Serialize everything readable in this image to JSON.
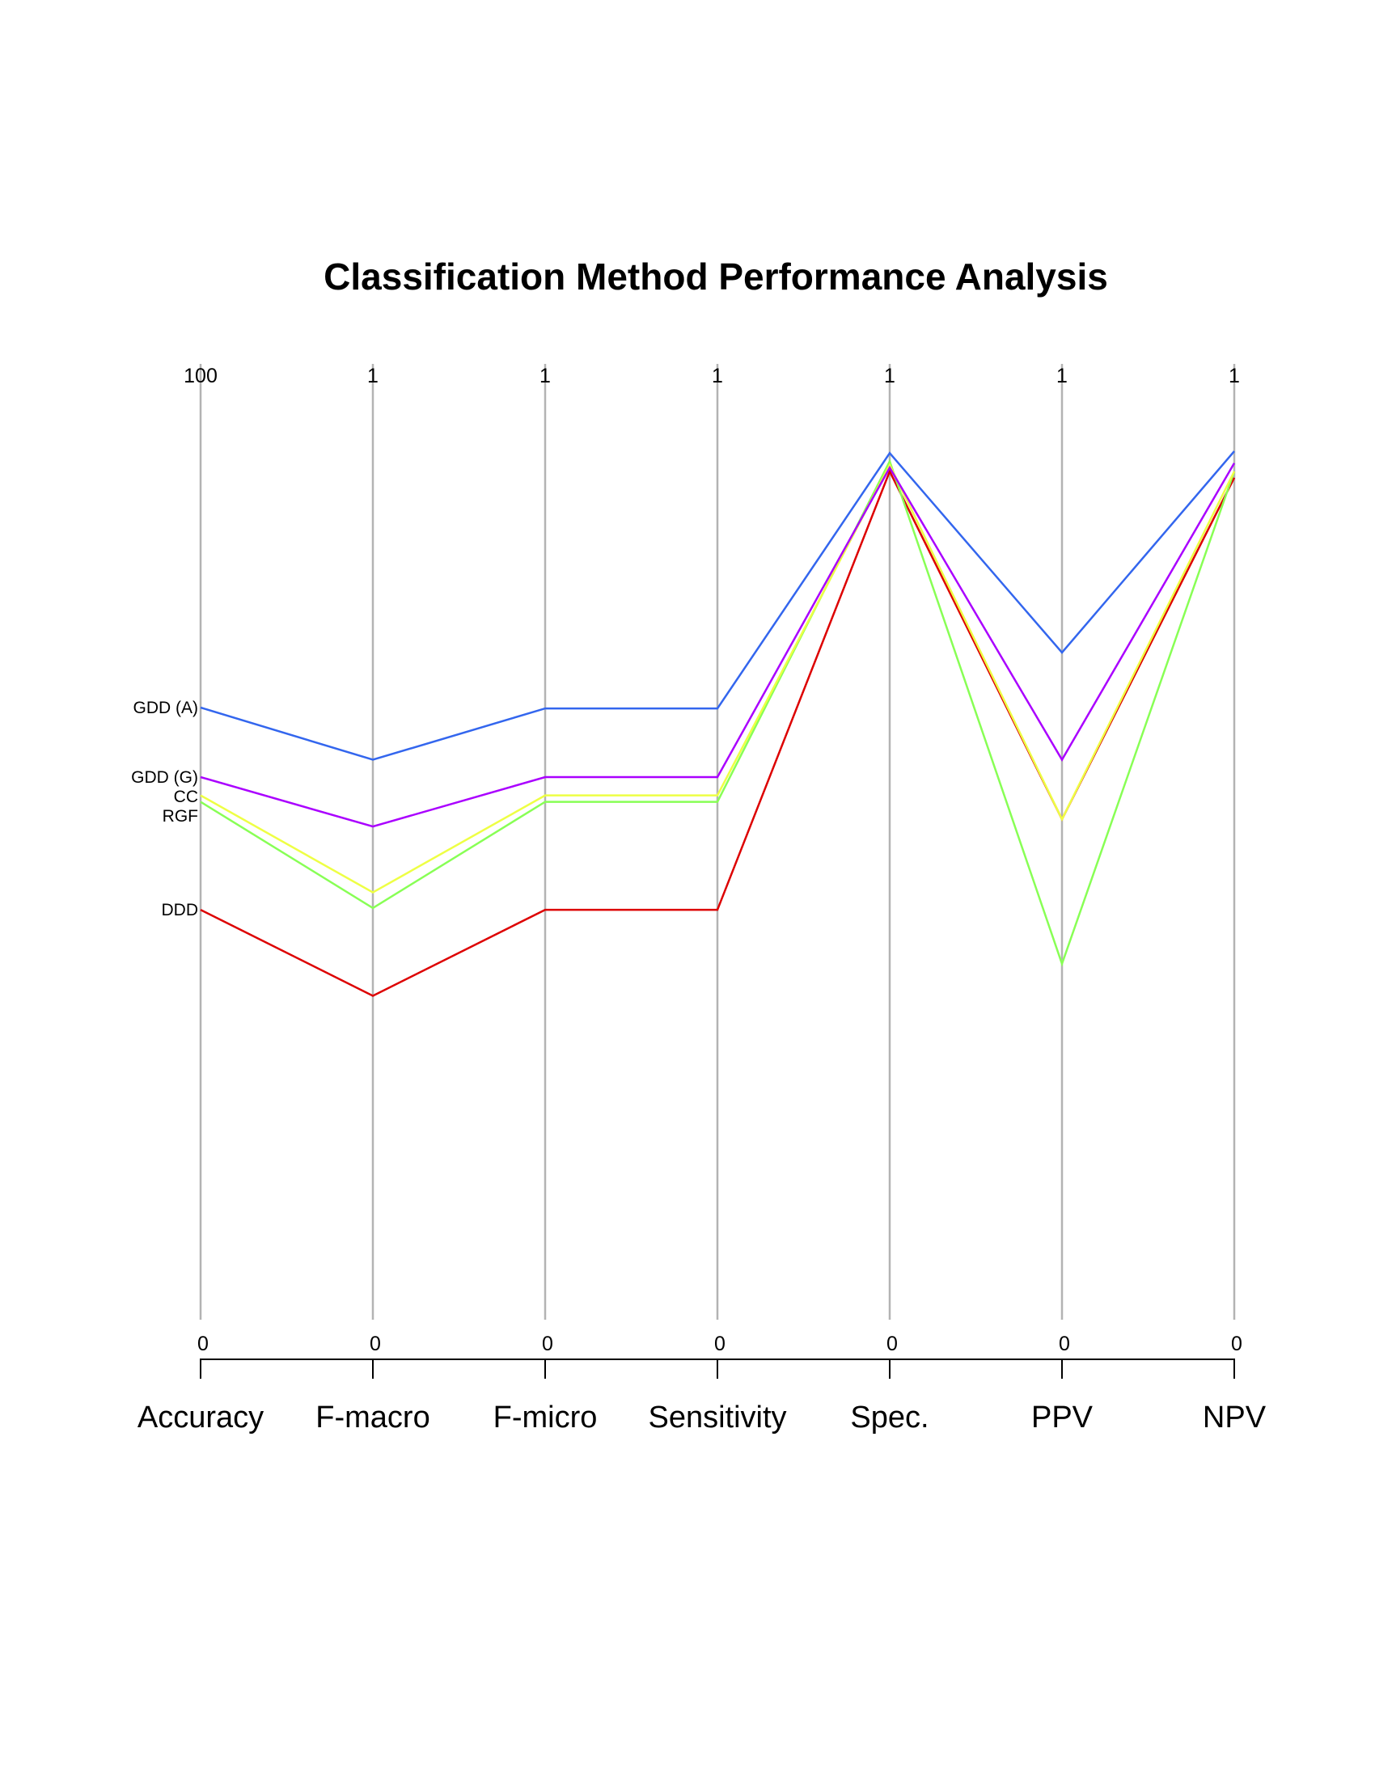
{
  "chart_data": {
    "type": "parallel-coordinates",
    "title": "Classification Method Performance Analysis",
    "axes": [
      {
        "name": "Accuracy",
        "min": 0,
        "max": 100,
        "min_label": "0",
        "max_label": "100"
      },
      {
        "name": "F-macro",
        "min": 0,
        "max": 1,
        "min_label": "0",
        "max_label": "1"
      },
      {
        "name": "F-micro",
        "min": 0,
        "max": 1,
        "min_label": "0",
        "max_label": "1"
      },
      {
        "name": "Sensitivity",
        "min": 0,
        "max": 1,
        "min_label": "0",
        "max_label": "1"
      },
      {
        "name": "Spec.",
        "min": 0,
        "max": 1,
        "min_label": "0",
        "max_label": "1"
      },
      {
        "name": "PPV",
        "min": 0,
        "max": 1,
        "min_label": "0",
        "max_label": "1"
      },
      {
        "name": "NPV",
        "min": 0,
        "max": 1,
        "min_label": "0",
        "max_label": "1"
      }
    ],
    "series": [
      {
        "name": "GDD (A)",
        "color": "#3366ee",
        "values": [
          66.7,
          0.61,
          0.666,
          0.666,
          0.945,
          0.727,
          0.947
        ]
      },
      {
        "name": "GDD (G)",
        "color": "#aa00ff",
        "values": [
          59.1,
          0.537,
          0.591,
          0.591,
          0.929,
          0.61,
          0.934
        ]
      },
      {
        "name": "CC",
        "color": "#eeff44",
        "values": [
          57.1,
          0.465,
          0.571,
          0.571,
          0.932,
          0.545,
          0.925
        ]
      },
      {
        "name": "RGF",
        "color": "#88ff55",
        "values": [
          56.4,
          0.448,
          0.564,
          0.564,
          0.936,
          0.387,
          0.925
        ]
      },
      {
        "name": "DDD",
        "color": "#dd0000",
        "values": [
          44.6,
          0.352,
          0.446,
          0.446,
          0.925,
          0.545,
          0.918
        ]
      }
    ]
  }
}
